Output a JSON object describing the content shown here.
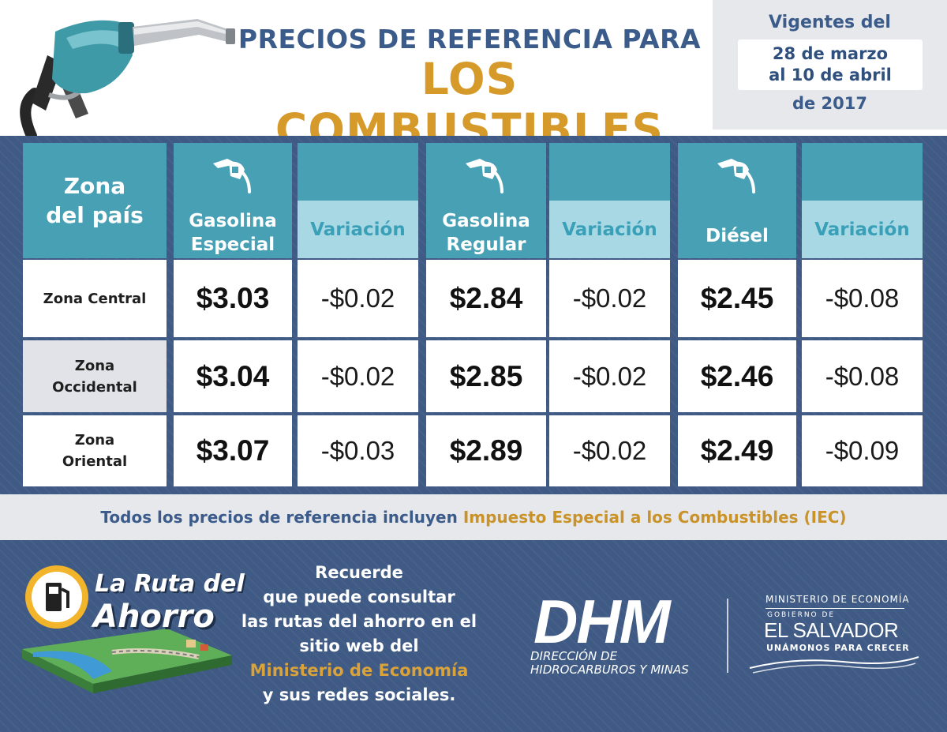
{
  "header": {
    "title_line1": "PRECIOS DE REFERENCIA PARA",
    "title_line2": "LOS COMBUSTIBLES",
    "validity": {
      "line1": "Vigentes del",
      "line2": "28 de marzo",
      "line3": "al 10 de abril",
      "line4": "de 2017"
    }
  },
  "table": {
    "zone_header_line1": "Zona",
    "zone_header_line2": "del país",
    "fuels": [
      {
        "label_line1": "Gasolina",
        "label_line2": "Especial",
        "variation_label": "Variación"
      },
      {
        "label_line1": "Gasolina",
        "label_line2": "Regular",
        "variation_label": "Variación"
      },
      {
        "label_line1": "Diésel",
        "label_line2": "",
        "variation_label": "Variación"
      }
    ],
    "rows": [
      {
        "zone_line1": "Zona Central",
        "zone_line2": "",
        "cells": [
          {
            "price": "$3.03",
            "variation": "-$0.02"
          },
          {
            "price": "$2.84",
            "variation": "-$0.02"
          },
          {
            "price": "$2.45",
            "variation": "-$0.08"
          }
        ]
      },
      {
        "zone_line1": "Zona",
        "zone_line2": "Occidental",
        "cells": [
          {
            "price": "$3.04",
            "variation": "-$0.02"
          },
          {
            "price": "$2.85",
            "variation": "-$0.02"
          },
          {
            "price": "$2.46",
            "variation": "-$0.08"
          }
        ]
      },
      {
        "zone_line1": "Zona",
        "zone_line2": "Oriental",
        "cells": [
          {
            "price": "$3.07",
            "variation": "-$0.03"
          },
          {
            "price": "$2.89",
            "variation": "-$0.02"
          },
          {
            "price": "$2.49",
            "variation": "-$0.09"
          }
        ]
      }
    ]
  },
  "note": {
    "text": "Todos los precios de referencia incluyen ",
    "highlight": "Impuesto Especial a los Combustibles (IEC)"
  },
  "footer": {
    "ruta_line1": "La Ruta del",
    "ruta_line2": "Ahorro",
    "reminder_lines": [
      "Recuerde",
      "que puede consultar",
      "las rutas del ahorro en el",
      "sitio web del",
      "Ministerio de Economía",
      "y sus redes sociales."
    ],
    "dhm": {
      "abbr": "DHM",
      "sub1": "DIRECCIÓN DE",
      "sub2": "HIDROCARBUROS Y MINAS"
    },
    "gov": {
      "ministry": "MINISTERIO DE ECONOMÍA",
      "gobierno": "GOBIERNO DE",
      "country": "EL SALVADOR",
      "slogan": "UNÁMONOS PARA CRECER"
    }
  },
  "colors": {
    "navy": "#3f5a84",
    "teal": "#48a0b5",
    "light_teal": "#a8d8e4",
    "gold": "#d69a2a",
    "title_blue": "#3b5b8a"
  },
  "icons": [
    "fuel-pump-nozzle-icon",
    "fuel-nozzle-icon",
    "gas-pump-icon",
    "road-landscape-icon"
  ]
}
